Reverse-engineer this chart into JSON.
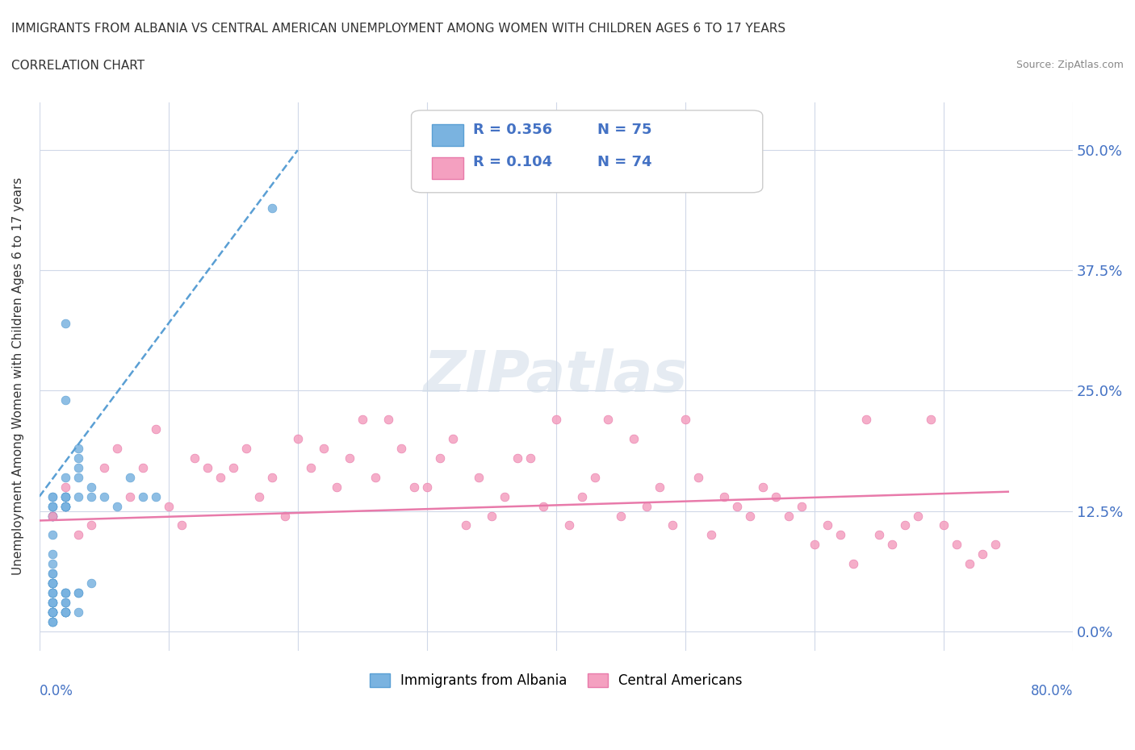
{
  "title_line1": "IMMIGRANTS FROM ALBANIA VS CENTRAL AMERICAN UNEMPLOYMENT AMONG WOMEN WITH CHILDREN AGES 6 TO 17 YEARS",
  "title_line2": "CORRELATION CHART",
  "source_text": "Source: ZipAtlas.com",
  "xlabel": "",
  "ylabel": "Unemployment Among Women with Children Ages 6 to 17 years",
  "x_bottom_left": "0.0%",
  "x_bottom_right": "80.0%",
  "xlim": [
    0,
    0.8
  ],
  "ylim": [
    -0.02,
    0.55
  ],
  "yticks": [
    0.0,
    0.125,
    0.25,
    0.375,
    0.5
  ],
  "ytick_labels": [
    "0.0%",
    "12.5%",
    "25.0%",
    "37.5%",
    "50.0%"
  ],
  "grid_color": "#d0d8e8",
  "background_color": "#ffffff",
  "albania_color": "#7ab3e0",
  "albania_color_dark": "#5a9fd4",
  "central_color": "#f4a0c0",
  "central_color_dark": "#e87aaa",
  "legend_R_albania": "R = 0.356",
  "legend_N_albania": "N = 75",
  "legend_R_central": "R = 0.104",
  "legend_N_central": "N = 74",
  "watermark": "ZIPatlas",
  "albania_trend_x": [
    0.0,
    0.2
  ],
  "albania_trend_y": [
    0.14,
    0.5
  ],
  "central_trend_x": [
    0.0,
    0.75
  ],
  "central_trend_y": [
    0.115,
    0.145
  ],
  "albania_scatter_x": [
    0.02,
    0.02,
    0.01,
    0.01,
    0.01,
    0.01,
    0.01,
    0.01,
    0.01,
    0.01,
    0.01,
    0.01,
    0.01,
    0.01,
    0.02,
    0.02,
    0.02,
    0.03,
    0.02,
    0.02,
    0.03,
    0.03,
    0.03,
    0.04,
    0.04,
    0.05,
    0.06,
    0.07,
    0.08,
    0.09,
    0.01,
    0.01,
    0.01,
    0.02,
    0.02,
    0.02,
    0.02,
    0.03,
    0.03,
    0.04,
    0.01,
    0.01,
    0.02,
    0.02,
    0.01,
    0.01,
    0.01,
    0.02,
    0.01,
    0.01,
    0.01,
    0.02,
    0.02,
    0.01,
    0.03,
    0.02,
    0.01,
    0.01,
    0.01,
    0.01,
    0.02,
    0.01,
    0.01,
    0.01,
    0.01,
    0.01,
    0.01,
    0.01,
    0.01,
    0.02,
    0.02,
    0.03,
    0.02,
    0.02,
    0.18
  ],
  "albania_scatter_y": [
    0.32,
    0.24,
    0.08,
    0.1,
    0.05,
    0.07,
    0.06,
    0.05,
    0.04,
    0.05,
    0.06,
    0.05,
    0.05,
    0.05,
    0.14,
    0.14,
    0.16,
    0.16,
    0.14,
    0.13,
    0.17,
    0.18,
    0.19,
    0.14,
    0.15,
    0.14,
    0.13,
    0.16,
    0.14,
    0.14,
    0.04,
    0.03,
    0.04,
    0.03,
    0.04,
    0.04,
    0.04,
    0.04,
    0.04,
    0.05,
    0.02,
    0.02,
    0.02,
    0.02,
    0.03,
    0.03,
    0.03,
    0.03,
    0.02,
    0.02,
    0.02,
    0.02,
    0.02,
    0.02,
    0.02,
    0.02,
    0.02,
    0.01,
    0.01,
    0.01,
    0.13,
    0.12,
    0.13,
    0.13,
    0.14,
    0.14,
    0.13,
    0.12,
    0.12,
    0.13,
    0.14,
    0.14,
    0.13,
    0.13,
    0.44
  ],
  "central_scatter_x": [
    0.01,
    0.02,
    0.03,
    0.04,
    0.05,
    0.06,
    0.07,
    0.08,
    0.09,
    0.1,
    0.11,
    0.12,
    0.13,
    0.14,
    0.15,
    0.16,
    0.17,
    0.18,
    0.19,
    0.2,
    0.21,
    0.22,
    0.23,
    0.24,
    0.25,
    0.26,
    0.27,
    0.28,
    0.29,
    0.3,
    0.31,
    0.32,
    0.33,
    0.34,
    0.35,
    0.36,
    0.37,
    0.38,
    0.39,
    0.4,
    0.41,
    0.42,
    0.43,
    0.44,
    0.45,
    0.46,
    0.47,
    0.48,
    0.49,
    0.5,
    0.51,
    0.52,
    0.53,
    0.54,
    0.55,
    0.56,
    0.57,
    0.58,
    0.59,
    0.6,
    0.61,
    0.62,
    0.63,
    0.64,
    0.65,
    0.66,
    0.67,
    0.68,
    0.69,
    0.7,
    0.71,
    0.72,
    0.73,
    0.74
  ],
  "central_scatter_y": [
    0.12,
    0.15,
    0.1,
    0.11,
    0.17,
    0.19,
    0.14,
    0.17,
    0.21,
    0.13,
    0.11,
    0.18,
    0.17,
    0.16,
    0.17,
    0.19,
    0.14,
    0.16,
    0.12,
    0.2,
    0.17,
    0.19,
    0.15,
    0.18,
    0.22,
    0.16,
    0.22,
    0.19,
    0.15,
    0.15,
    0.18,
    0.2,
    0.11,
    0.16,
    0.12,
    0.14,
    0.18,
    0.18,
    0.13,
    0.22,
    0.11,
    0.14,
    0.16,
    0.22,
    0.12,
    0.2,
    0.13,
    0.15,
    0.11,
    0.22,
    0.16,
    0.1,
    0.14,
    0.13,
    0.12,
    0.15,
    0.14,
    0.12,
    0.13,
    0.09,
    0.11,
    0.1,
    0.07,
    0.22,
    0.1,
    0.09,
    0.11,
    0.12,
    0.22,
    0.11,
    0.09,
    0.07,
    0.08,
    0.09
  ]
}
